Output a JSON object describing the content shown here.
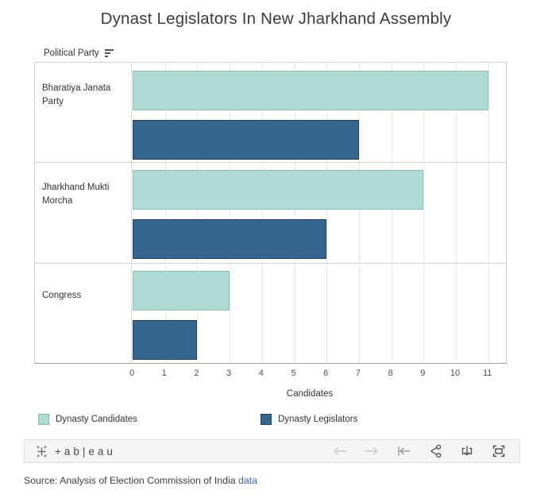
{
  "title": "Dynast Legislators In New Jharkhand Assembly",
  "row_header": "Political Party",
  "chart_data": {
    "type": "bar",
    "orientation": "horizontal",
    "title": "Dynast Legislators In New Jharkhand Assembly",
    "categories": [
      "Bharatiya Janata Party",
      "Jharkhand Mukti Morcha",
      "Congress"
    ],
    "series": [
      {
        "name": "Dynasty Candidates",
        "color": "#aedbd4",
        "values": [
          11,
          9,
          3
        ]
      },
      {
        "name": "Dynasty Legislators",
        "color": "#33678f",
        "values": [
          7,
          6,
          2
        ]
      }
    ],
    "xlabel": "Candidates",
    "x_ticks": [
      0,
      1,
      2,
      3,
      4,
      5,
      6,
      7,
      8,
      9,
      10,
      11
    ],
    "xlim": [
      0,
      11.6
    ],
    "grid": true,
    "legend_position": "bottom",
    "row_header": "Political Party",
    "sort_icon": "sort-descending-icon"
  },
  "legend": {
    "items": [
      {
        "label": "Dynasty Candidates",
        "color": "#aedbd4"
      },
      {
        "label": "Dynasty Legislators",
        "color": "#33678f"
      }
    ]
  },
  "toolbar": {
    "brand_wordmark": "+ab|eau",
    "icons": [
      "tableau-logo-icon",
      "undo-icon",
      "redo-icon",
      "revert-icon",
      "share-icon",
      "download-icon",
      "fullscreen-icon"
    ]
  },
  "source": {
    "text": "Source: Analysis of Election Commission of India ",
    "link_label": "data"
  },
  "colors": {
    "candidates": "#aedbd4",
    "legislators": "#33678f",
    "gridline": "#e9e9e9",
    "axis_line": "#9c9c9c",
    "link": "#3a66c4"
  }
}
